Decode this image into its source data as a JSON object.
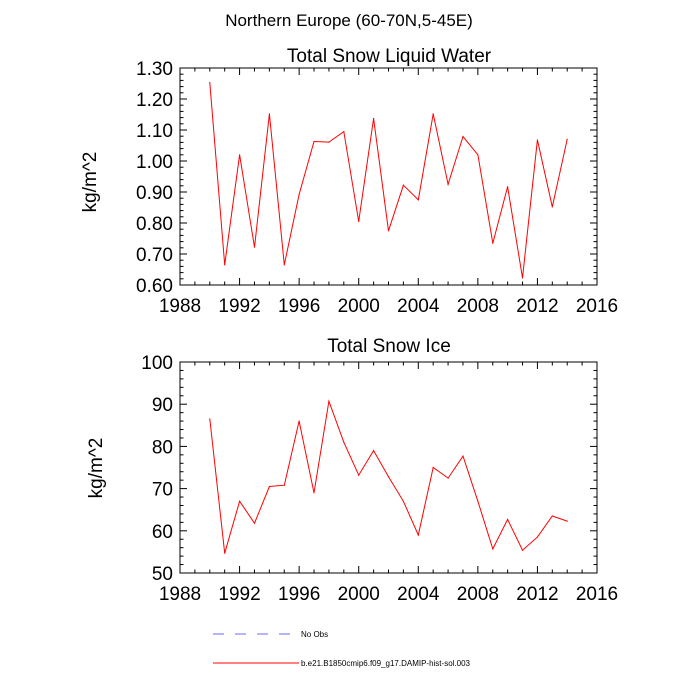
{
  "figure": {
    "title": "Northern Europe (60-70N,5-45E)"
  },
  "chart_data": [
    {
      "type": "line",
      "title": "Total Snow Liquid Water",
      "xlabel": "",
      "ylabel": "kg/m^2",
      "xlim": [
        1988,
        2016
      ],
      "ylim": [
        0.6,
        1.3
      ],
      "x_ticks": [
        1988,
        1992,
        1996,
        2000,
        2004,
        2008,
        2012,
        2016
      ],
      "y_ticks": [
        "0.60",
        "0.70",
        "0.80",
        "0.90",
        "1.00",
        "1.10",
        "1.20",
        "1.30"
      ],
      "grid": false,
      "series": [
        {
          "name": "b.e21.B1850cmip6.f09_g17.DAMIP-hist-sol.003",
          "color": "#ff0000",
          "x": [
            1990,
            1991,
            1992,
            1993,
            1994,
            1995,
            1996,
            1997,
            1998,
            1999,
            2000,
            2001,
            2002,
            2003,
            2004,
            2005,
            2006,
            2007,
            2008,
            2009,
            2010,
            2011,
            2012,
            2013,
            2014
          ],
          "y": [
            1.253,
            0.665,
            1.02,
            0.722,
            1.152,
            0.665,
            0.892,
            1.063,
            1.061,
            1.095,
            0.805,
            1.137,
            0.775,
            0.922,
            0.875,
            1.152,
            0.925,
            1.079,
            1.02,
            0.735,
            0.917,
            0.623,
            1.068,
            0.852,
            1.07
          ]
        }
      ]
    },
    {
      "type": "line",
      "title": "Total Snow Ice",
      "xlabel": "",
      "ylabel": "kg/m^2",
      "xlim": [
        1988,
        2016
      ],
      "ylim": [
        50,
        100
      ],
      "x_ticks": [
        1988,
        1992,
        1996,
        2000,
        2004,
        2008,
        2012,
        2016
      ],
      "y_ticks": [
        "50",
        "60",
        "70",
        "80",
        "90",
        "100"
      ],
      "grid": false,
      "series": [
        {
          "name": "b.e21.B1850cmip6.f09_g17.DAMIP-hist-sol.003",
          "color": "#ff0000",
          "x": [
            1990,
            1991,
            1992,
            1993,
            1994,
            1995,
            1996,
            1997,
            1998,
            1999,
            2000,
            2001,
            2002,
            2003,
            2004,
            2005,
            2006,
            2007,
            2008,
            2009,
            2010,
            2011,
            2012,
            2013,
            2014
          ],
          "y": [
            86.5,
            54.7,
            67.0,
            61.8,
            70.5,
            70.8,
            86.0,
            69.0,
            90.7,
            81.0,
            73.2,
            79.0,
            72.8,
            67.0,
            59.0,
            75.0,
            72.5,
            77.7,
            67.0,
            55.7,
            62.7,
            55.4,
            58.5,
            63.5,
            62.3
          ]
        }
      ]
    }
  ],
  "legend": {
    "placement": "bottom",
    "entries": [
      {
        "label": "No Obs",
        "color": "#6a6aff",
        "style": "dashed"
      },
      {
        "label": "b.e21.B1850cmip6.f09_g17.DAMIP-hist-sol.003",
        "color": "#ff0000",
        "style": "solid"
      }
    ]
  }
}
